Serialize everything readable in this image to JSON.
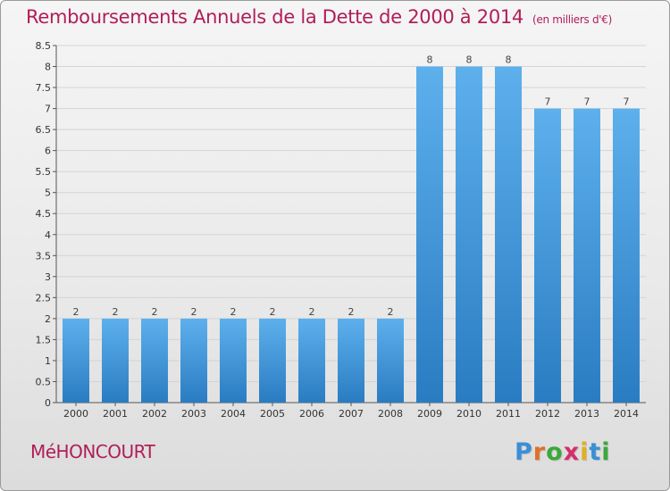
{
  "title": "Remboursements Annuels de la Dette de 2000 à 2014",
  "unit": "(en milliers d'€)",
  "commune": "MéHONCOURT",
  "logo": {
    "letters": [
      "P",
      "r",
      "o",
      "x",
      "i",
      "t",
      "i"
    ],
    "colors": [
      "#3a8fd6",
      "#e0702a",
      "#3aa83a",
      "#d42f6a",
      "#e0b020",
      "#3a8fd6",
      "#3aa83a"
    ]
  },
  "chart_data": {
    "type": "bar",
    "categories": [
      "2000",
      "2001",
      "2002",
      "2003",
      "2004",
      "2005",
      "2006",
      "2007",
      "2008",
      "2009",
      "2010",
      "2011",
      "2012",
      "2013",
      "2014"
    ],
    "values": [
      2,
      2,
      2,
      2,
      2,
      2,
      2,
      2,
      2,
      8,
      8,
      8,
      7,
      7,
      7
    ],
    "data_labels": [
      "2",
      "2",
      "2",
      "2",
      "2",
      "2",
      "2",
      "2",
      "2",
      "8",
      "8",
      "8",
      "7",
      "7",
      "7"
    ],
    "ylim": [
      0,
      8.5
    ],
    "yticks": [
      "0",
      "0.5",
      "1",
      "1.5",
      "2",
      "2.5",
      "3",
      "3.5",
      "4",
      "4.5",
      "5",
      "5.5",
      "6",
      "6.5",
      "7",
      "7.5",
      "8",
      "8.5"
    ],
    "grid": true,
    "bar_color": "#4d9fe0"
  }
}
